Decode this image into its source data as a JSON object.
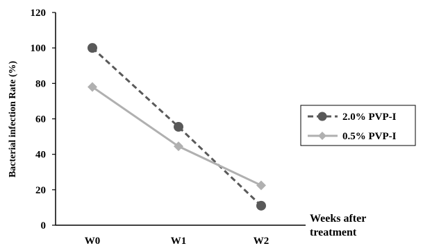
{
  "chart_data": {
    "type": "line",
    "title": "",
    "xlabel": "Weeks after treatment",
    "xlabel_lines": [
      "Weeks after",
      "treatment"
    ],
    "ylabel": "Bacterial infection Rate (%)",
    "categories": [
      "W0",
      "W1",
      "W2"
    ],
    "ylim": [
      0,
      120
    ],
    "yticks": [
      0,
      20,
      40,
      60,
      80,
      100,
      120
    ],
    "grid": false,
    "legend_position": "right",
    "series": [
      {
        "name": "2.0% PVP-I",
        "values": [
          100,
          55.5,
          11
        ],
        "color": "#595959",
        "dash": "dashed",
        "marker": "circle"
      },
      {
        "name": "0.5% PVP-I",
        "values": [
          78,
          44.5,
          22.5
        ],
        "color": "#b0b0b0",
        "dash": "solid",
        "marker": "diamond"
      }
    ]
  }
}
